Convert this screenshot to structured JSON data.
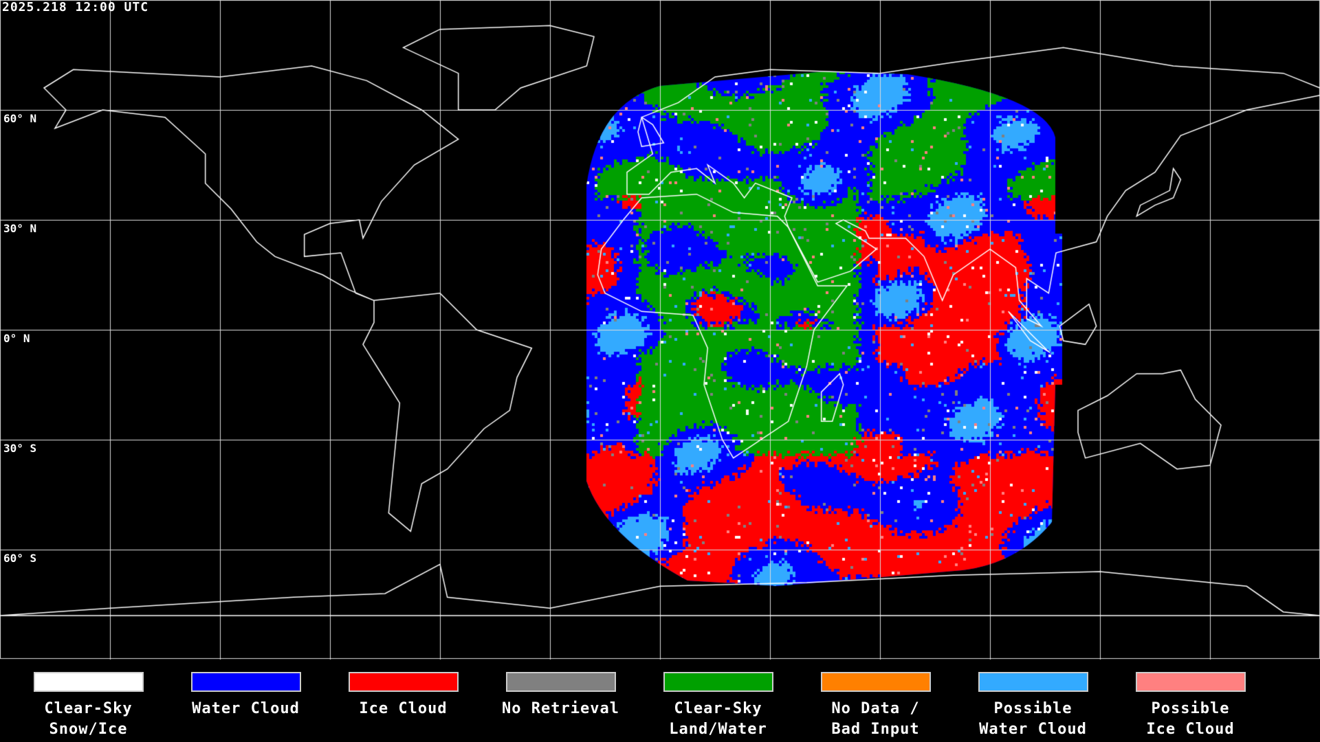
{
  "title": "2025.218 12:00 UTC",
  "lat_labels": [
    "60° N",
    "30° N",
    "0° N",
    "30° S",
    "60° S"
  ],
  "legend": [
    {
      "line1": "Clear-Sky",
      "line2": "Snow/Ice",
      "color": "#ffffff"
    },
    {
      "line1": "Water Cloud",
      "line2": "",
      "color": "#0000ff"
    },
    {
      "line1": "Ice Cloud",
      "line2": "",
      "color": "#ff0000"
    },
    {
      "line1": "No Retrieval",
      "line2": "",
      "color": "#808080"
    },
    {
      "line1": "Clear-Sky",
      "line2": "Land/Water",
      "color": "#00a000"
    },
    {
      "line1": "No Data /",
      "line2": "Bad Input",
      "color": "#ff8000"
    },
    {
      "line1": "Possible",
      "line2": "Water Cloud",
      "color": "#33aaff"
    },
    {
      "line1": "Possible",
      "line2": "Ice Cloud",
      "color": "#ff8080"
    }
  ]
}
